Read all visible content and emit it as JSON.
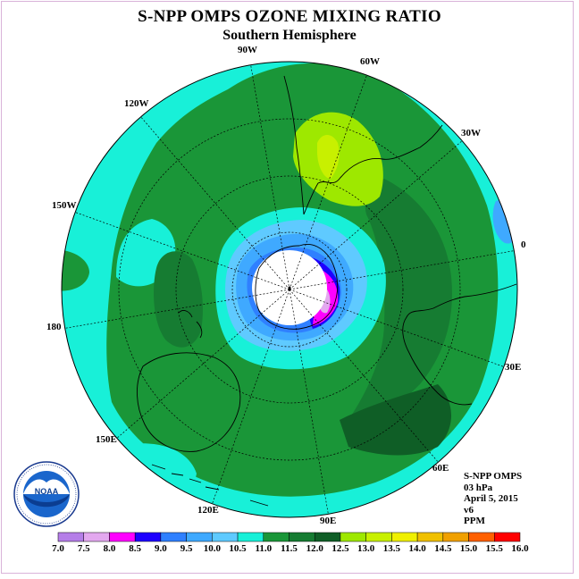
{
  "title": "S-NPP OMPS OZONE MIXING RATIO",
  "subtitle": "Southern Hemisphere",
  "longitude_labels": {
    "w90": "90W",
    "w60": "60W",
    "w30": "30W",
    "e0": "0",
    "w120": "120W",
    "w150": "150W",
    "d180": "180",
    "e30": "30E",
    "e60": "60E",
    "e90": "90E",
    "e120": "120E",
    "e150": "150E"
  },
  "info": {
    "instrument": "S-NPP OMPS",
    "level": "03 hPa",
    "date": "April 5, 2015",
    "version": "v6",
    "units": "PPM"
  },
  "logo": {
    "text": "NOAA"
  },
  "colorbar": {
    "ticks": [
      "7.0",
      "7.5",
      "8.0",
      "8.5",
      "9.0",
      "9.5",
      "10.0",
      "10.5",
      "11.0",
      "11.5",
      "12.0",
      "12.5",
      "13.0",
      "13.5",
      "14.0",
      "14.5",
      "15.0",
      "15.5",
      "16.0"
    ],
    "colors": [
      "#b57ee8",
      "#e3a8ef",
      "#ff00ff",
      "#1e00ff",
      "#2f80ff",
      "#3fa9ff",
      "#5fcaff",
      "#18f0d8",
      "#1a9638",
      "#167c32",
      "#0f5e26",
      "#9ee800",
      "#c8f000",
      "#f0f000",
      "#f0c000",
      "#f0a000",
      "#ff6000",
      "#ff0000",
      "#8b5a3c"
    ]
  },
  "map_colors": {
    "cyan": "#18f0d8",
    "green": "#1a9638",
    "dark_green": "#167c32",
    "darker_green": "#0f5e26",
    "light_blue": "#5fcaff",
    "mid_blue": "#3fa9ff",
    "blue": "#2f80ff",
    "deep_blue": "#1e00ff",
    "magenta": "#ff00ff",
    "lime": "#9ee800",
    "yellow_green": "#c8f000"
  }
}
